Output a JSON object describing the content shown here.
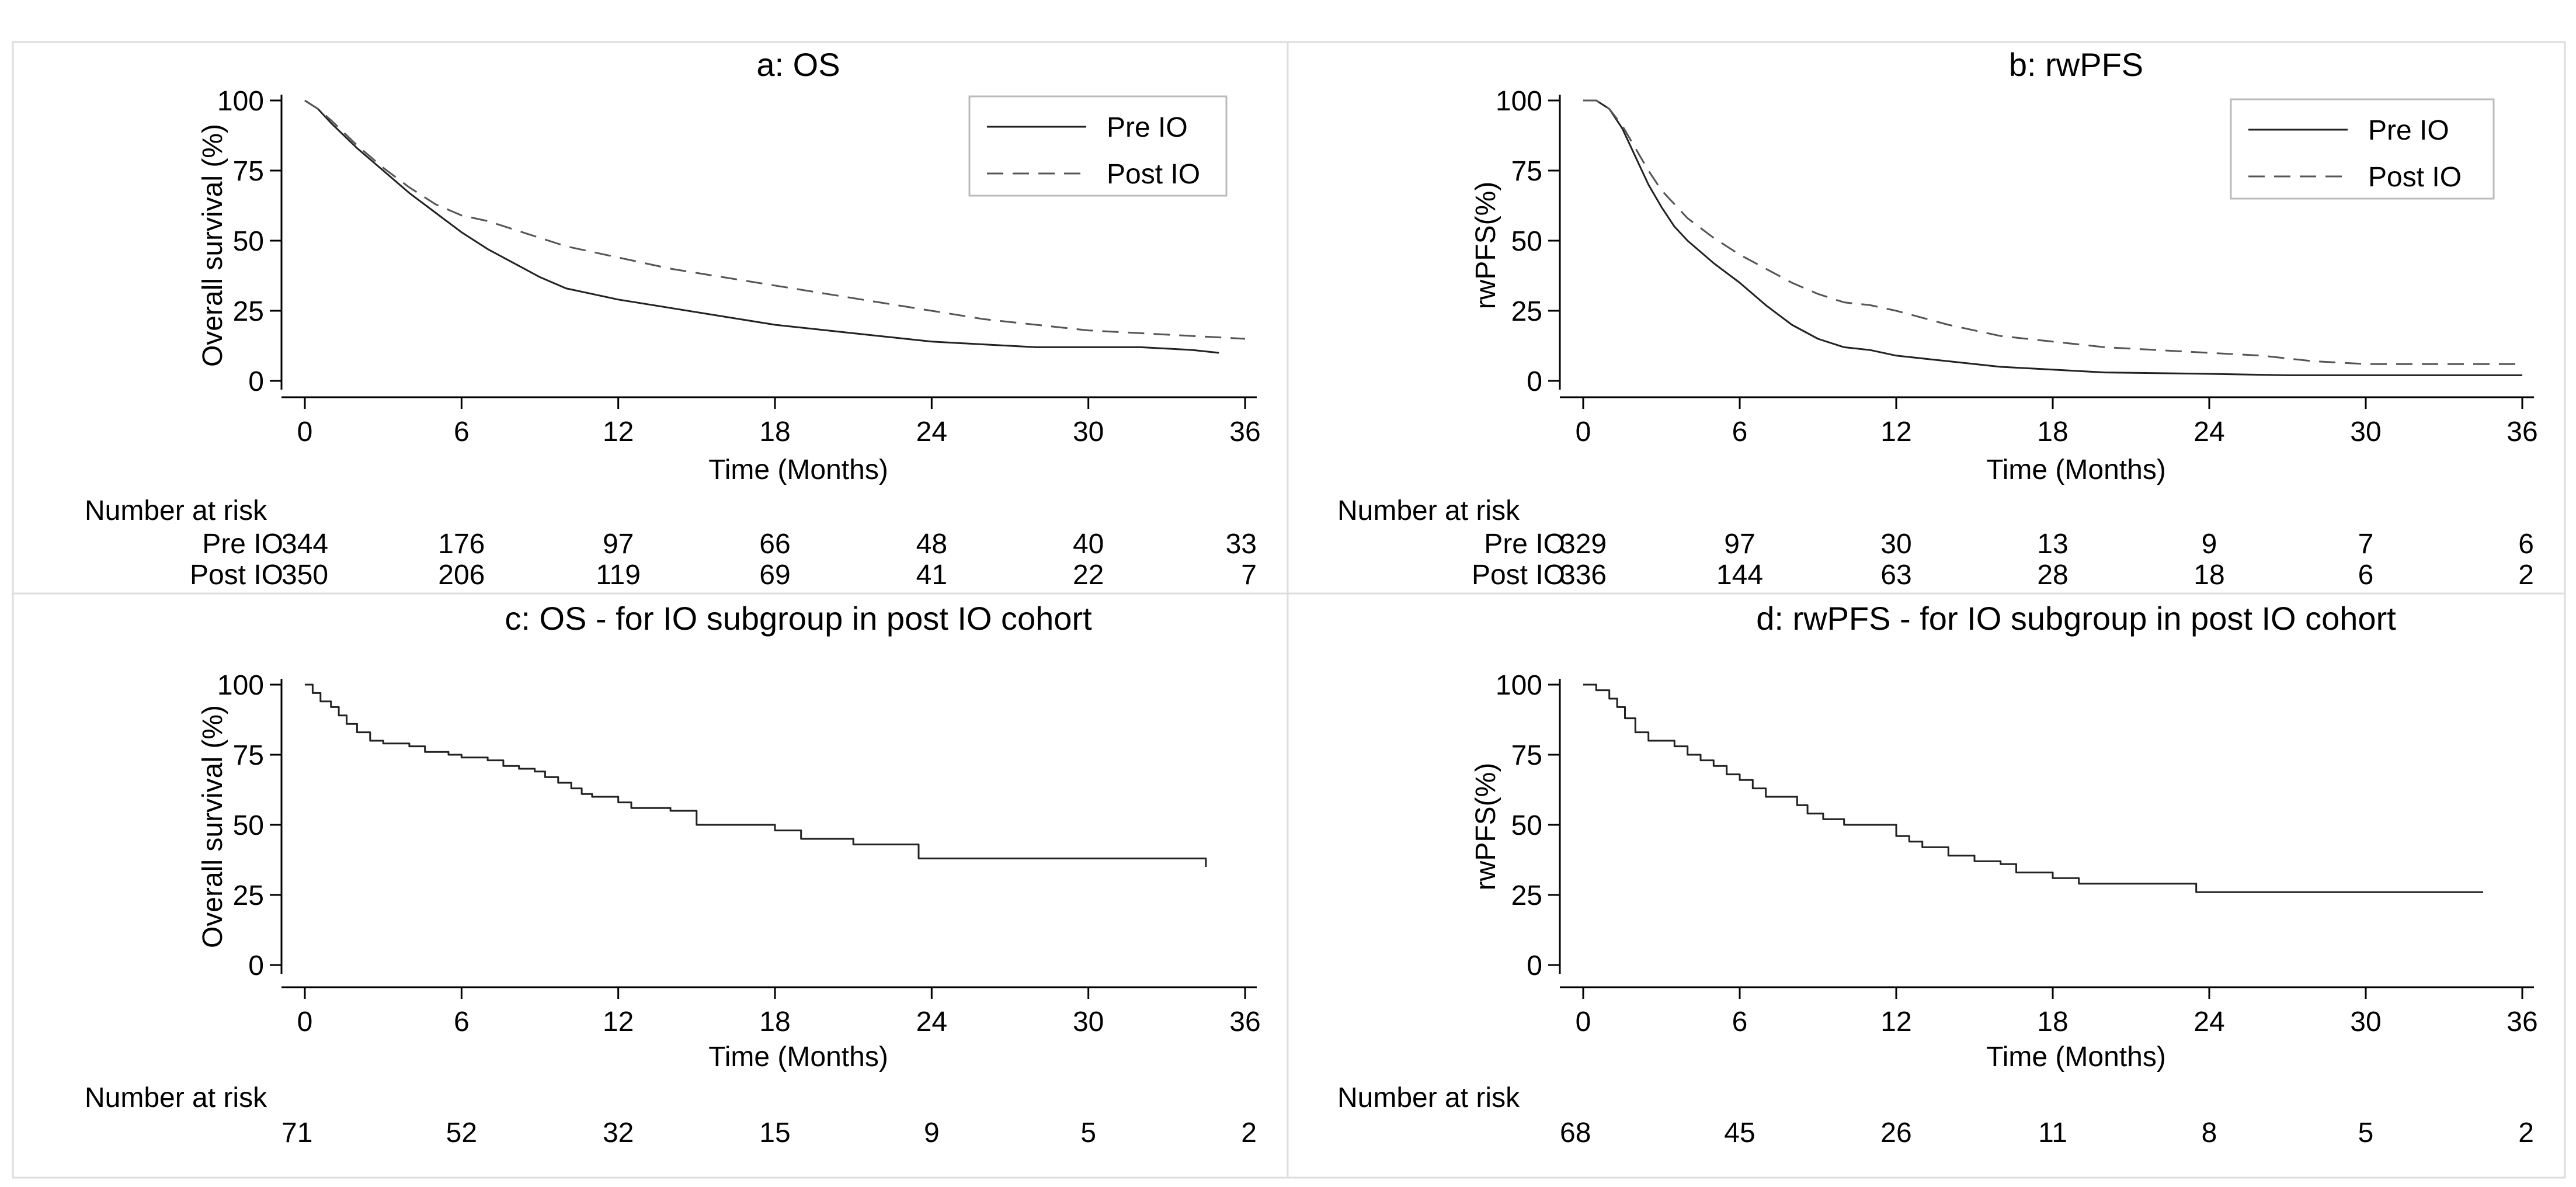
{
  "chart_data": [
    {
      "type": "line",
      "panel": "a",
      "title": "a: OS",
      "xlabel": "Time (Months)",
      "ylabel": "Overall survival (%)",
      "xlim": [
        0,
        36
      ],
      "ylim": [
        0,
        100
      ],
      "xticks": [
        "0",
        "6",
        "12",
        "18",
        "24",
        "30",
        "36"
      ],
      "yticks": [
        "0",
        "25",
        "50",
        "75",
        "100"
      ],
      "legend_position": "top-right",
      "series": [
        {
          "name": "Pre IO",
          "style": "solid",
          "x": [
            0,
            0.5,
            1,
            2,
            3,
            4,
            5,
            6,
            7,
            8,
            9,
            10,
            11,
            12,
            14,
            16,
            18,
            20,
            22,
            24,
            26,
            28,
            30,
            32,
            34,
            35
          ],
          "y": [
            100,
            97,
            92,
            83,
            75,
            67,
            60,
            53,
            47,
            42,
            37,
            33,
            31,
            29,
            26,
            23,
            20,
            18,
            16,
            14,
            13,
            12,
            12,
            12,
            11,
            10
          ]
        },
        {
          "name": "Post IO",
          "style": "dashed",
          "x": [
            0,
            0.5,
            1,
            2,
            3,
            4,
            5,
            6,
            7,
            8,
            9,
            10,
            11,
            12,
            14,
            16,
            18,
            20,
            22,
            24,
            26,
            28,
            30,
            32,
            34,
            36
          ],
          "y": [
            100,
            97,
            93,
            84,
            76,
            69,
            63,
            59,
            57,
            54,
            51,
            48,
            46,
            44,
            40,
            37,
            34,
            31,
            28,
            25,
            22,
            20,
            18,
            17,
            16,
            15
          ]
        }
      ],
      "risk_table": {
        "header": "Number at risk",
        "rows": [
          {
            "label": "Pre IO",
            "values": [
              "344",
              "176",
              "97",
              "66",
              "48",
              "40",
              "33"
            ]
          },
          {
            "label": "Post IO",
            "values": [
              "350",
              "206",
              "119",
              "69",
              "41",
              "22",
              "7"
            ]
          }
        ]
      }
    },
    {
      "type": "line",
      "panel": "b",
      "title": "b: rwPFS",
      "xlabel": "Time (Months)",
      "ylabel": "rwPFS(%)",
      "xlim": [
        0,
        36
      ],
      "ylim": [
        0,
        100
      ],
      "xticks": [
        "0",
        "6",
        "12",
        "18",
        "24",
        "30",
        "36"
      ],
      "yticks": [
        "0",
        "25",
        "50",
        "75",
        "100"
      ],
      "legend_position": "top-right",
      "series": [
        {
          "name": "Pre IO",
          "style": "solid",
          "x": [
            0,
            0.5,
            1,
            1.5,
            2,
            2.5,
            3,
            3.5,
            4,
            5,
            6,
            7,
            8,
            9,
            10,
            11,
            12,
            14,
            16,
            18,
            20,
            24,
            27,
            30,
            33,
            36
          ],
          "y": [
            100,
            100,
            97,
            90,
            80,
            70,
            62,
            55,
            50,
            42,
            35,
            27,
            20,
            15,
            12,
            11,
            9,
            7,
            5,
            4,
            3,
            2.5,
            2,
            2,
            2,
            2
          ]
        },
        {
          "name": "Post IO",
          "style": "dashed",
          "x": [
            0,
            0.5,
            1,
            1.5,
            2,
            2.5,
            3,
            3.5,
            4,
            5,
            6,
            7,
            8,
            9,
            10,
            11,
            12,
            14,
            16,
            18,
            20,
            22,
            24,
            26,
            28,
            30,
            32,
            34,
            36
          ],
          "y": [
            100,
            100,
            97,
            91,
            83,
            75,
            68,
            63,
            58,
            51,
            45,
            40,
            35,
            31,
            28,
            27,
            25,
            20,
            16,
            14,
            12,
            11,
            10,
            9,
            7,
            6,
            6,
            6,
            6
          ]
        }
      ],
      "risk_table": {
        "header": "Number at risk",
        "rows": [
          {
            "label": "Pre IO",
            "values": [
              "329",
              "97",
              "30",
              "13",
              "9",
              "7",
              "6"
            ]
          },
          {
            "label": "Post IO",
            "values": [
              "336",
              "144",
              "63",
              "28",
              "18",
              "6",
              "2"
            ]
          }
        ]
      }
    },
    {
      "type": "line",
      "panel": "c",
      "title": "c: OS - for IO subgroup in post IO cohort",
      "xlabel": "Time (Months)",
      "ylabel": "Overall survival (%)",
      "xlim": [
        0,
        36
      ],
      "ylim": [
        0,
        100
      ],
      "xticks": [
        "0",
        "6",
        "12",
        "18",
        "24",
        "30",
        "36"
      ],
      "yticks": [
        "0",
        "25",
        "50",
        "75",
        "100"
      ],
      "legend_position": "none",
      "series": [
        {
          "name": "",
          "style": "step",
          "x": [
            0,
            0.3,
            0.6,
            1.0,
            1.3,
            1.6,
            2.0,
            2.5,
            3.0,
            4.0,
            4.6,
            5.5,
            6.0,
            7.0,
            7.6,
            8.2,
            8.8,
            9.2,
            9.7,
            10.2,
            10.6,
            11.0,
            12.0,
            12.5,
            14.0,
            15.0,
            18.0,
            19.0,
            21.0,
            22.5,
            23.5,
            34.5
          ],
          "y": [
            100,
            97,
            94,
            92,
            89,
            86,
            83,
            80,
            79,
            78,
            76,
            75,
            74,
            73,
            71,
            70,
            69,
            67,
            65,
            63,
            61,
            60,
            58,
            56,
            55,
            50,
            48,
            45,
            43,
            43,
            38,
            35
          ]
        }
      ],
      "risk_table": {
        "header": "Number at risk",
        "rows": [
          {
            "label": "",
            "values": [
              "71",
              "52",
              "32",
              "15",
              "9",
              "5",
              "2"
            ]
          }
        ]
      }
    },
    {
      "type": "line",
      "panel": "d",
      "title": "d: rwPFS - for IO subgroup in post IO cohort",
      "xlabel": "Time (Months)",
      "ylabel": "rwPFS(%)",
      "xlim": [
        0,
        36
      ],
      "ylim": [
        0,
        100
      ],
      "xticks": [
        "0",
        "6",
        "12",
        "18",
        "24",
        "30",
        "36"
      ],
      "yticks": [
        "0",
        "25",
        "50",
        "75",
        "100"
      ],
      "legend_position": "none",
      "series": [
        {
          "name": "",
          "style": "step",
          "x": [
            0,
            0.5,
            1.0,
            1.3,
            1.6,
            2.0,
            2.5,
            3.5,
            4.0,
            4.5,
            5.0,
            5.5,
            6.0,
            6.5,
            7.0,
            8.2,
            8.6,
            9.2,
            10.0,
            12.0,
            12.5,
            13.0,
            14.0,
            15.0,
            16.0,
            16.6,
            18.0,
            19.0,
            23.5,
            34.5
          ],
          "y": [
            100,
            98,
            95,
            92,
            88,
            83,
            80,
            78,
            75,
            73,
            71,
            68,
            66,
            63,
            60,
            57,
            54,
            52,
            50,
            46,
            44,
            42,
            39,
            37,
            36,
            33,
            31,
            29,
            26,
            26
          ]
        }
      ],
      "risk_table": {
        "header": "Number at risk",
        "rows": [
          {
            "label": "",
            "values": [
              "68",
              "45",
              "26",
              "11",
              "8",
              "5",
              "2"
            ]
          }
        ]
      }
    }
  ]
}
